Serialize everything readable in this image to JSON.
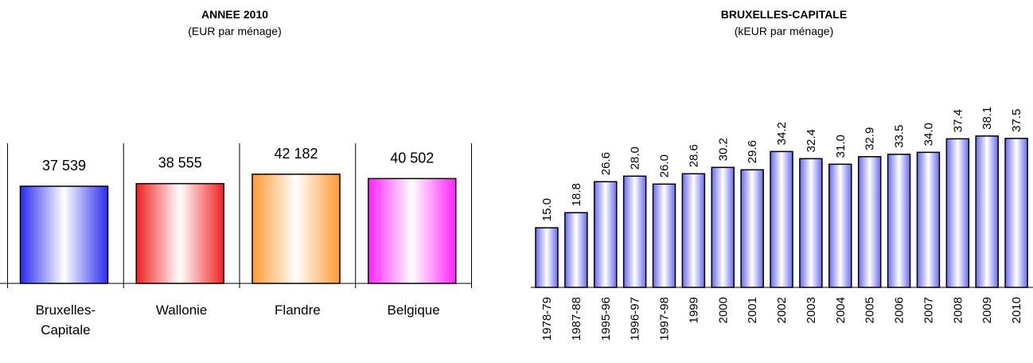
{
  "chart_data": [
    {
      "type": "bar",
      "title": "ANNEE 2010",
      "subtitle": "(EUR par ménage)",
      "categories": [
        [
          "Bruxelles-",
          "Capitale"
        ],
        [
          "Wallonie"
        ],
        [
          "Flandre"
        ],
        [
          "Belgique"
        ]
      ],
      "values": [
        37539,
        38555,
        42182,
        40502
      ],
      "value_labels": [
        "37 539",
        "38 555",
        "42 182",
        "40 502"
      ],
      "colors": [
        "#2b2bf0",
        "#f02020",
        "#ff9933",
        "#ff22ff"
      ],
      "ylim": [
        0,
        50000
      ],
      "grid": false,
      "legend": "none"
    },
    {
      "type": "bar",
      "title": "BRUXELLES-CAPITALE",
      "subtitle": "(kEUR par ménage)",
      "categories": [
        "1978-79",
        "1987-88",
        "1995-96",
        "1996-97",
        "1997-98",
        "1999",
        "2000",
        "2001",
        "2002",
        "2003",
        "2004",
        "2005",
        "2006",
        "2007",
        "2008",
        "2009",
        "2010"
      ],
      "values": [
        15.0,
        18.8,
        26.6,
        28.0,
        26.0,
        28.6,
        30.2,
        29.6,
        34.2,
        32.4,
        31.0,
        32.9,
        33.5,
        34.0,
        37.4,
        38.1,
        37.5
      ],
      "value_labels": [
        "15.0",
        "18.8",
        "26.6",
        "28.0",
        "26.0",
        "28.6",
        "30.2",
        "29.6",
        "34.2",
        "32.4",
        "31.0",
        "32.9",
        "33.5",
        "34.0",
        "37.4",
        "38.1",
        "37.5"
      ],
      "color": "#6a6aee",
      "grid": false,
      "legend": "none"
    }
  ]
}
